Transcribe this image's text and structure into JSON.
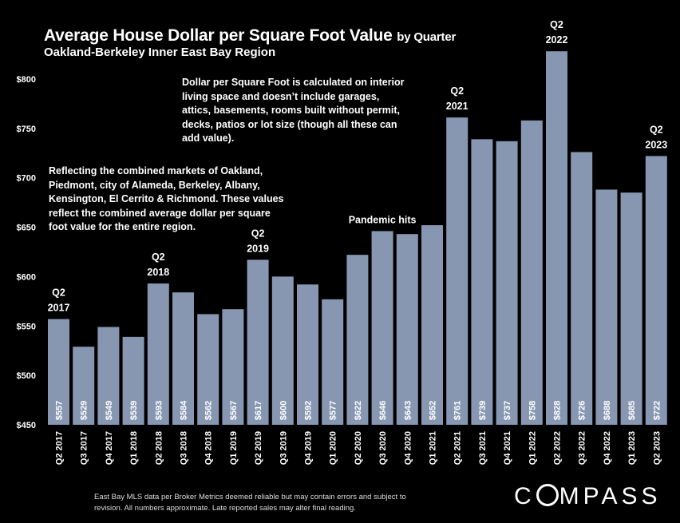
{
  "chart_data": {
    "type": "bar",
    "title_main": "Average House Dollar per Square Foot Value",
    "title_suffix": "by Quarter",
    "subtitle": "Oakland-Berkeley Inner East Bay Region",
    "ylim": [
      450,
      850
    ],
    "yticks": [
      "$450",
      "$500",
      "$550",
      "$600",
      "$650",
      "$700",
      "$750",
      "$800"
    ],
    "ytick_values": [
      450,
      500,
      550,
      600,
      650,
      700,
      750,
      800
    ],
    "bar_color": "#8797b2",
    "categories": [
      "Q2 2017",
      "Q3 2017",
      "Q4 2017",
      "Q1 2018",
      "Q2 2018",
      "Q3 2018",
      "Q4 2018",
      "Q1 2019",
      "Q2 2019",
      "Q3 2019",
      "Q4 2019",
      "Q1 2020",
      "Q2 2020",
      "Q3 2020",
      "Q4 2020",
      "Q1 2021",
      "Q2 2021",
      "Q3 2021",
      "Q4 2021",
      "Q1 2022",
      "Q2 2022",
      "Q3 2022",
      "Q4 2022",
      "Q1 2023",
      "Q2 2023"
    ],
    "values": [
      557,
      529,
      549,
      539,
      593,
      584,
      562,
      567,
      617,
      600,
      592,
      577,
      622,
      646,
      643,
      652,
      761,
      739,
      737,
      758,
      828,
      726,
      688,
      685,
      722
    ],
    "value_labels": [
      "$557",
      "$529",
      "$549",
      "$539",
      "$593",
      "$584",
      "$562",
      "$567",
      "$617",
      "$600",
      "$592",
      "$577",
      "$622",
      "$646",
      "$643",
      "$652",
      "$761",
      "$739",
      "$737",
      "$758",
      "$828",
      "$726",
      "$688",
      "$685",
      "$722"
    ],
    "annotations": [
      {
        "index": 0,
        "lines": [
          "Q2",
          "2017"
        ]
      },
      {
        "index": 4,
        "lines": [
          "Q2",
          "2018"
        ]
      },
      {
        "index": 8,
        "lines": [
          "Q2",
          "2019"
        ]
      },
      {
        "index": 16,
        "lines": [
          "Q2",
          "2021"
        ]
      },
      {
        "index": 20,
        "lines": [
          "Q2",
          "2022"
        ]
      },
      {
        "index": 24,
        "lines": [
          "Q2",
          "2023"
        ]
      },
      {
        "index": 13,
        "lines": [
          "Pandemic hits"
        ]
      }
    ]
  },
  "notes": {
    "definition": "Dollar per Square Foot is calculated on interior living space and doesn’t include garages, attics, basements, rooms built without permit, decks, patios or lot size (though all these can add value).",
    "region": "Reflecting the combined markets of Oakland, Piedmont, city of Alameda, Berkeley, Albany, Kensington, El Cerrito & Richmond. These values reflect the combined average dollar per square foot value for the entire region."
  },
  "footnote": "East Bay MLS data per Broker Metrics deemed reliable but may contain errors and subject to revision. All numbers approximate. Late reported sales may alter final reading.",
  "logo": {
    "before": "C",
    "after": "MPASS"
  }
}
